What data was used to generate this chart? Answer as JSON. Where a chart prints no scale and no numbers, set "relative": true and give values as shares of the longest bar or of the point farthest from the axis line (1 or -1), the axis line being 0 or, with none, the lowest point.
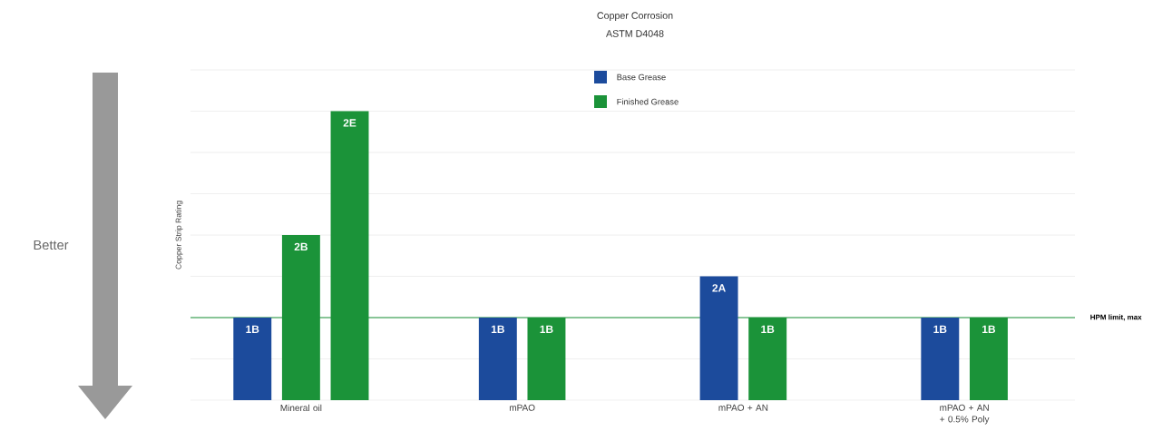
{
  "chart_data": {
    "type": "bar",
    "title": "Copper Corrosion",
    "subtitle": "ASTM D4048",
    "ylabel": "Copper Strip Rating",
    "categories": [
      "Mineral oil",
      "mPAO",
      "mPAO + AN",
      "mPAO + AN + 0.5% Poly"
    ],
    "relative": true,
    "grid": "y",
    "legend": "top",
    "series": [
      {
        "name": "Base Grease",
        "color": "#1c4b9c",
        "values": [
          0.2857,
          0.2857,
          0.4286,
          0.2857
        ]
      },
      {
        "name": "Finished Grease",
        "color": "#1b9339",
        "values": [
          0.5714,
          0.2857,
          0.2857,
          0.2857
        ]
      },
      {
        "color": "#1b9339",
        "values": [
          1,
          null,
          null,
          null
        ]
      }
    ],
    "ref_lines": [
      {
        "axis": "y",
        "value": 0.2857,
        "label": "HPM limit, max",
        "color": "#1b9339"
      }
    ],
    "annotations": [
      "Better",
      "1B",
      "2B",
      "2E",
      "1B",
      "1B",
      "2A",
      "1B",
      "1B",
      "1B"
    ]
  }
}
